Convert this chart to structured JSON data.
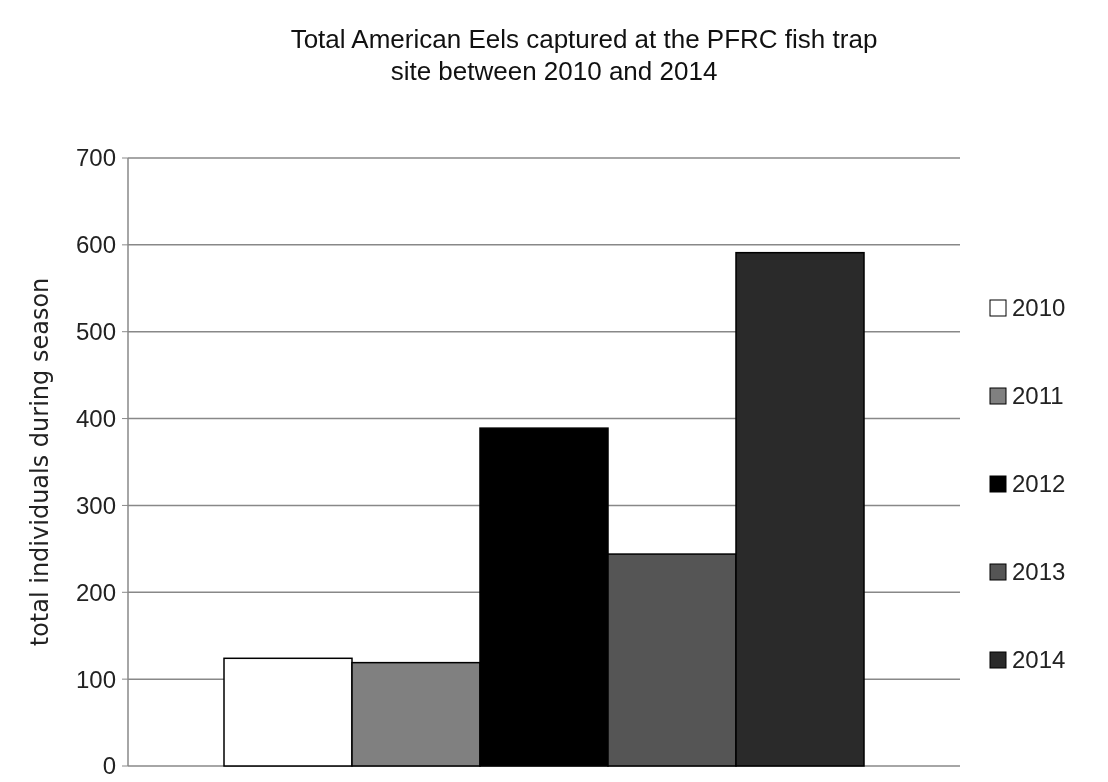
{
  "chart_data": {
    "type": "bar",
    "title": "Total American Eels captured at the PFRC fish trap\nsite between 2010 and 2014",
    "ylabel": "total individuals during season",
    "categories": [
      null
    ],
    "series": [
      {
        "name": "2010",
        "color": "#ffffff",
        "values": [
          124
        ]
      },
      {
        "name": "2011",
        "color": "#808080",
        "values": [
          119
        ]
      },
      {
        "name": "2012",
        "color": "#000000",
        "values": [
          389
        ]
      },
      {
        "name": "2013",
        "color": "#555555",
        "values": [
          244
        ]
      },
      {
        "name": "2014",
        "color": "#2a2a2a",
        "values": [
          591
        ]
      }
    ],
    "ylim": [
      0,
      700
    ],
    "yticks": [
      0,
      100,
      200,
      300,
      400,
      500,
      600,
      700
    ],
    "grid": "y",
    "legend": "right"
  }
}
